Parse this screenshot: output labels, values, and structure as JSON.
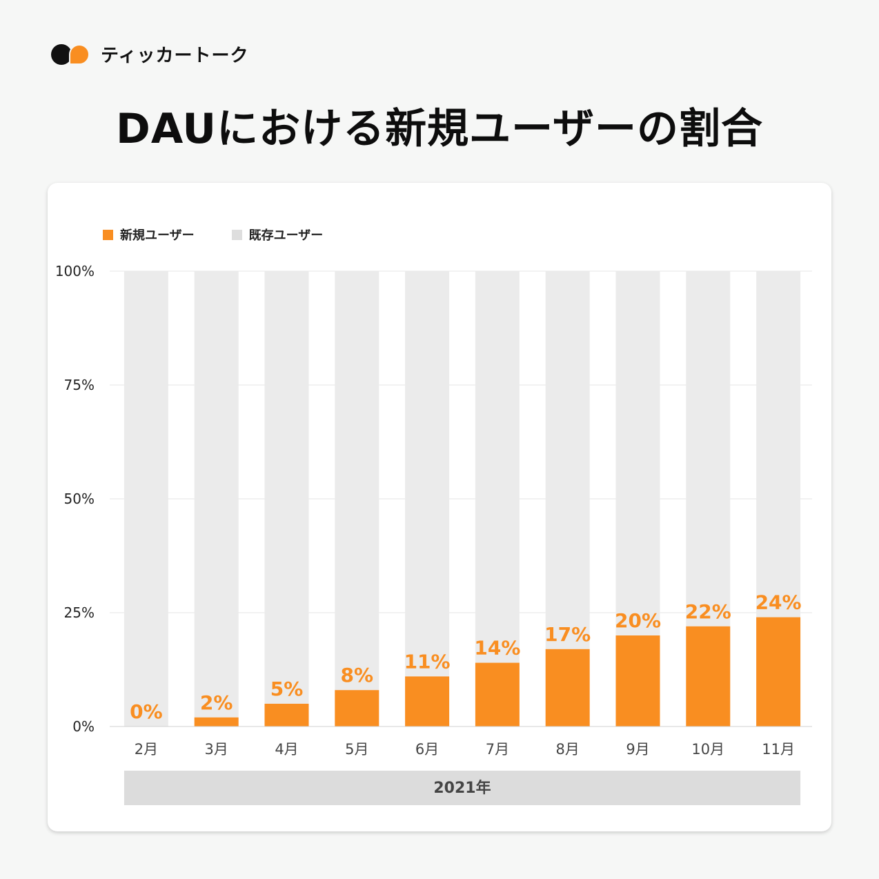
{
  "brand": {
    "name": "ティッカートーク"
  },
  "colors": {
    "new_users": "#f98e21",
    "existing_users": "#ebebeb",
    "year_band": "#dcdcdc"
  },
  "chart_data": {
    "type": "bar",
    "title": "DAUにおける新規ユーザーの割合",
    "categories": [
      "2月",
      "3月",
      "4月",
      "5月",
      "6月",
      "7月",
      "8月",
      "9月",
      "10月",
      "11月"
    ],
    "series": [
      {
        "name": "新規ユーザー",
        "values": [
          0,
          2,
          5,
          8,
          11,
          14,
          17,
          20,
          22,
          24
        ]
      },
      {
        "name": "既存ユーザー",
        "values": [
          100,
          98,
          95,
          92,
          89,
          86,
          83,
          80,
          78,
          76
        ]
      }
    ],
    "data_labels": [
      "0%",
      "2%",
      "5%",
      "8%",
      "11%",
      "14%",
      "17%",
      "20%",
      "22%",
      "24%"
    ],
    "y_ticks": [
      "0%",
      "25%",
      "50%",
      "75%",
      "100%"
    ],
    "ylim": [
      0,
      100
    ],
    "x_group_label": "2021年",
    "legend_position": "top-left",
    "grid": true
  }
}
